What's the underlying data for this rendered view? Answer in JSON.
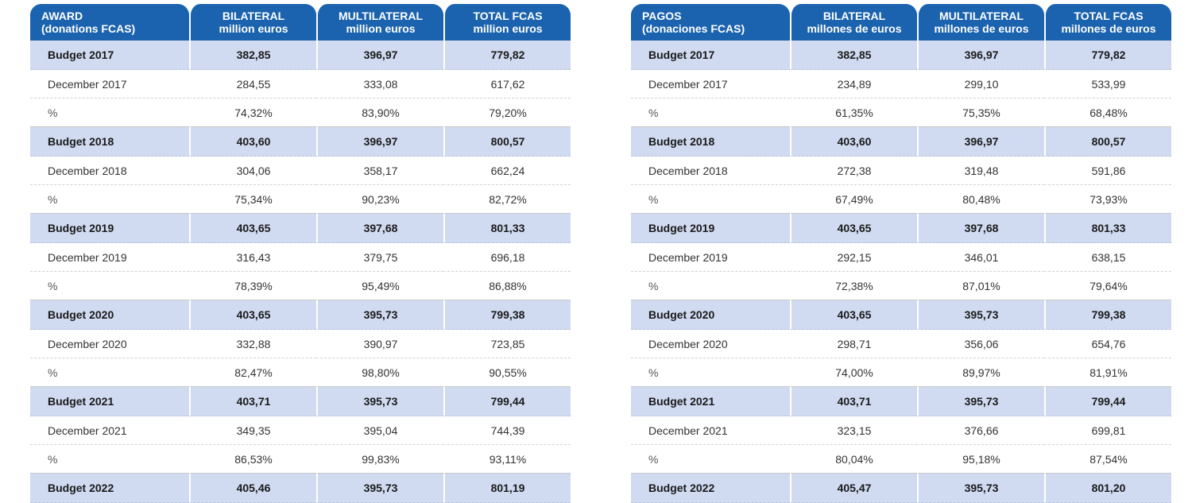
{
  "left": {
    "header": {
      "c1_line1": "AWARD",
      "c1_line2": "(donations FCAS)",
      "c2_line1": "BILATERAL",
      "c2_line2": "million euros",
      "c3_line1": "MULTILATERAL",
      "c3_line2": "million euros",
      "c4_line1": "TOTAL FCAS",
      "c4_line2": "million euros"
    },
    "rows": [
      [
        "Budget  2017",
        "382,85",
        "396,97",
        "779,82"
      ],
      [
        "December 2017",
        "284,55",
        "333,08",
        "617,62"
      ],
      [
        "%",
        "74,32%",
        "83,90%",
        "79,20%"
      ],
      [
        "Budget  2018",
        "403,60",
        "396,97",
        "800,57"
      ],
      [
        "December 2018",
        "304,06",
        "358,17",
        "662,24"
      ],
      [
        "%",
        "75,34%",
        "90,23%",
        "82,72%"
      ],
      [
        "Budget  2019",
        "403,65",
        "397,68",
        "801,33"
      ],
      [
        "December 2019",
        "316,43",
        "379,75",
        "696,18"
      ],
      [
        "%",
        "78,39%",
        "95,49%",
        "86,88%"
      ],
      [
        "Budget  2020",
        "403,65",
        "395,73",
        "799,38"
      ],
      [
        "December 2020",
        "332,88",
        "390,97",
        "723,85"
      ],
      [
        "%",
        "82,47%",
        "98,80%",
        "90,55%"
      ],
      [
        "Budget  2021",
        "403,71",
        "395,73",
        "799,44"
      ],
      [
        "December 2021",
        "349,35",
        "395,04",
        "744,39"
      ],
      [
        "%",
        "86,53%",
        "99,83%",
        "93,11%"
      ],
      [
        "Budget  2022",
        "405,46",
        "395,73",
        "801,19"
      ]
    ]
  },
  "right": {
    "header": {
      "c1_line1": "PAGOS",
      "c1_line2": "(donaciones FCAS)",
      "c2_line1": "BILATERAL",
      "c2_line2": "millones de euros",
      "c3_line1": "MULTILATERAL",
      "c3_line2": "millones de euros",
      "c4_line1": "TOTAL FCAS",
      "c4_line2": "millones de euros"
    },
    "rows": [
      [
        "Budget  2017",
        "382,85",
        "396,97",
        "779,82"
      ],
      [
        "December 2017",
        "234,89",
        "299,10",
        "533,99"
      ],
      [
        "%",
        "61,35%",
        "75,35%",
        "68,48%"
      ],
      [
        "Budget  2018",
        "403,60",
        "396,97",
        "800,57"
      ],
      [
        "December 2018",
        "272,38",
        "319,48",
        "591,86"
      ],
      [
        "%",
        "67,49%",
        "80,48%",
        "73,93%"
      ],
      [
        "Budget  2019",
        "403,65",
        "397,68",
        "801,33"
      ],
      [
        "December 2019",
        "292,15",
        "346,01",
        "638,15"
      ],
      [
        "%",
        "72,38%",
        "87,01%",
        "79,64%"
      ],
      [
        "Budget  2020",
        "403,65",
        "395,73",
        "799,38"
      ],
      [
        "December 2020",
        "298,71",
        "356,06",
        "654,76"
      ],
      [
        "%",
        "74,00%",
        "89,97%",
        "81,91%"
      ],
      [
        "Budget  2021",
        "403,71",
        "395,73",
        "799,44"
      ],
      [
        "December 2021",
        "323,15",
        "376,66",
        "699,81"
      ],
      [
        "%",
        "80,04%",
        "95,18%",
        "87,54%"
      ],
      [
        "Budget  2022",
        "405,47",
        "395,73",
        "801,20"
      ]
    ]
  },
  "colors": {
    "header_bg": "#1b63ae",
    "budget_row_bg": "#d0daf0",
    "text": "#333333"
  }
}
